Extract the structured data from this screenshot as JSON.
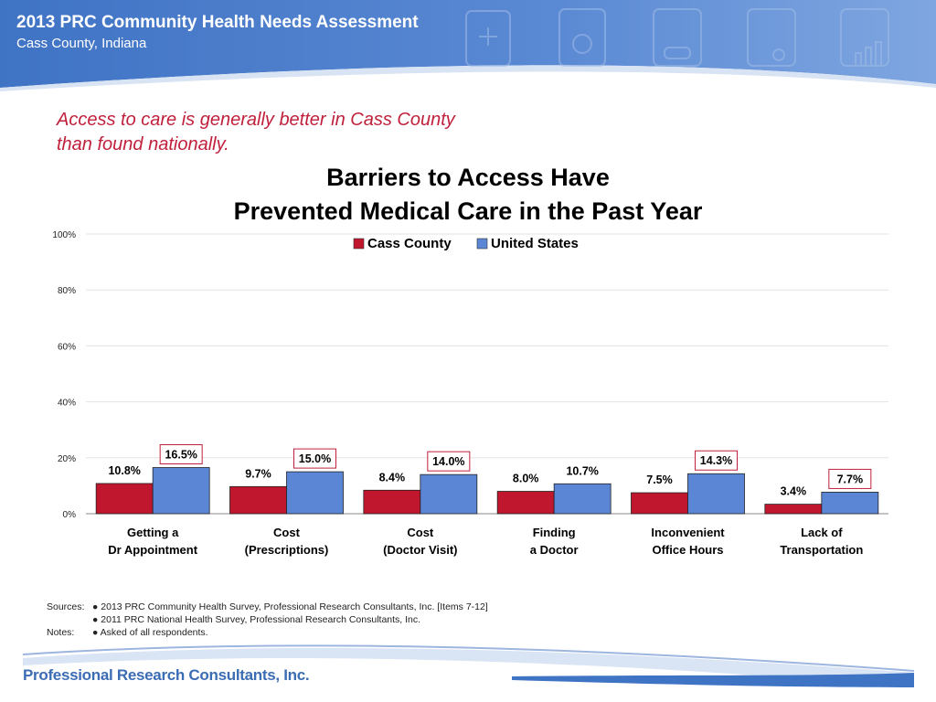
{
  "header": {
    "title": "2013 PRC Community Health Needs Assessment",
    "subtitle": "Cass County, Indiana"
  },
  "takeaway": {
    "line1": "Access to care is generally better in Cass County",
    "line2": "than found nationally."
  },
  "colors": {
    "cass": "#c0172f",
    "us": "#5b86d6",
    "header_blue": "#4a7cc9",
    "highlight_box": "#c0203c"
  },
  "chart_data": {
    "type": "bar",
    "title_line1": "Barriers to Access Have",
    "title_line2": "Prevented Medical Care in the Past Year",
    "categories": [
      [
        "Getting a",
        "Dr Appointment"
      ],
      [
        "Cost",
        "(Prescriptions)"
      ],
      [
        "Cost",
        "(Doctor Visit)"
      ],
      [
        "Finding",
        "a Doctor"
      ],
      [
        "Inconvenient",
        "Office Hours"
      ],
      [
        "Lack of",
        "Transportation"
      ]
    ],
    "series": [
      {
        "name": "Cass County",
        "values": [
          10.8,
          9.7,
          8.4,
          8.0,
          7.5,
          3.4
        ],
        "labels": [
          "10.8%",
          "9.7%",
          "8.4%",
          "8.0%",
          "7.5%",
          "3.4%"
        ]
      },
      {
        "name": "United States",
        "values": [
          16.5,
          15.0,
          14.0,
          10.7,
          14.3,
          7.7
        ],
        "labels": [
          "16.5%",
          "15.0%",
          "14.0%",
          "10.7%",
          "14.3%",
          "7.7%"
        ],
        "boxed": [
          true,
          true,
          true,
          false,
          true,
          true
        ]
      }
    ],
    "yticks": [
      "0%",
      "20%",
      "40%",
      "60%",
      "80%",
      "100%"
    ],
    "ylim": [
      0,
      100
    ],
    "grid": true,
    "legend_position": "top-center"
  },
  "footer": {
    "sources_label": "Sources:",
    "source1": "●  2013 PRC Community Health Survey, Professional Research Consultants, Inc.  [Items 7-12]",
    "source2": "●  2011 PRC National Health Survey, Professional Research Consultants, Inc.",
    "notes_label": "Notes:",
    "note1": "●  Asked of all respondents.",
    "brand": "Professional Research Consultants, Inc."
  }
}
